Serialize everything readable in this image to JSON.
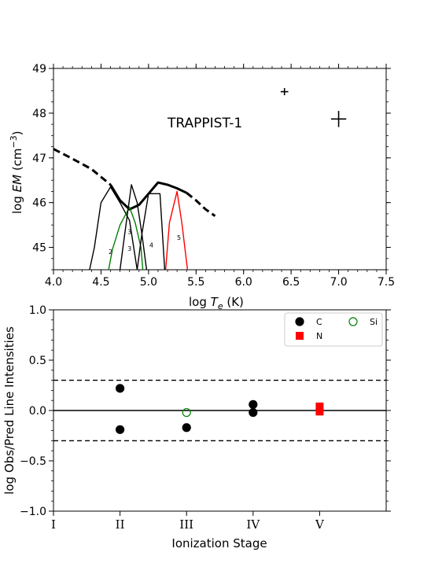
{
  "chart_data": [
    {
      "type": "line",
      "annotation": "TRAPPIST-1",
      "xlim": [
        4.0,
        7.5
      ],
      "ylim": [
        44.5,
        49.0
      ],
      "xticks": [
        "4.0",
        "4.5",
        "5.0",
        "5.5",
        "6.0",
        "6.5",
        "7.0",
        "7.5"
      ],
      "yticks": [
        "45",
        "46",
        "47",
        "48",
        "49"
      ],
      "xlabel": {
        "pre": "log ",
        "var": "T",
        "sub": "e",
        "post": " (K)"
      },
      "ylabel": {
        "pre": "log ",
        "var": "EM",
        "post": " (cm",
        "sup": "−3",
        "close": ")"
      },
      "series": [
        {
          "kind": "em-dashed",
          "color": "#000000",
          "x": [
            4.0,
            4.2,
            4.4,
            4.6
          ],
          "y": [
            47.2,
            46.98,
            46.75,
            46.4
          ]
        },
        {
          "kind": "em-solid",
          "color": "#000000",
          "x": [
            4.6,
            4.7,
            4.8,
            4.9,
            5.0,
            5.1,
            5.2,
            5.3,
            5.4
          ],
          "y": [
            46.4,
            46.05,
            45.85,
            45.95,
            46.2,
            46.45,
            46.4,
            46.32,
            46.22
          ]
        },
        {
          "kind": "em-dashed",
          "color": "#000000",
          "x": [
            5.4,
            5.5,
            5.6,
            5.7
          ],
          "y": [
            46.22,
            46.05,
            45.85,
            45.7
          ]
        },
        {
          "kind": "loci",
          "color": "#000000",
          "x": [
            4.38,
            4.43,
            4.5,
            4.6,
            4.7,
            4.8,
            4.88
          ],
          "y": [
            44.5,
            45.0,
            46.0,
            46.35,
            46.0,
            45.6,
            44.5
          ]
        },
        {
          "kind": "loci",
          "color": "#008000",
          "x": [
            4.58,
            4.62,
            4.7,
            4.8,
            4.86,
            4.92,
            4.94
          ],
          "y": [
            44.5,
            44.95,
            45.5,
            45.9,
            45.55,
            45.0,
            44.5
          ]
        },
        {
          "kind": "loci",
          "color": "#000000",
          "x": [
            4.7,
            4.75,
            4.82,
            4.88,
            4.93,
            4.98
          ],
          "y": [
            44.5,
            45.3,
            46.4,
            46.0,
            45.3,
            44.5
          ]
        },
        {
          "kind": "loci",
          "color": "#000000",
          "x": [
            4.88,
            4.93,
            5.0,
            5.12,
            5.17
          ],
          "y": [
            44.5,
            45.3,
            46.2,
            46.2,
            44.5
          ]
        },
        {
          "kind": "loci",
          "color": "#ff0000",
          "x": [
            5.18,
            5.22,
            5.3,
            5.35,
            5.41
          ],
          "y": [
            44.5,
            45.55,
            46.25,
            45.55,
            44.5
          ]
        }
      ],
      "point_labels": [
        {
          "text": "2",
          "x": 4.6,
          "y": 44.85
        },
        {
          "text": "3",
          "x": 4.8,
          "y": 45.3
        },
        {
          "text": "3",
          "x": 4.8,
          "y": 44.92
        },
        {
          "text": "4",
          "x": 5.03,
          "y": 45.0
        },
        {
          "text": "5",
          "x": 5.32,
          "y": 45.17
        }
      ],
      "points": [
        {
          "x": 6.43,
          "y": 48.48,
          "xerr": 0.04,
          "yerr": 0.08
        },
        {
          "x": 7.0,
          "y": 47.87,
          "xerr": 0.08,
          "yerr": 0.18
        }
      ]
    },
    {
      "type": "scatter",
      "xlim": [
        1,
        6
      ],
      "ylim": [
        -1.0,
        1.0
      ],
      "xticks": [
        "I",
        "II",
        "III",
        "IV",
        "V"
      ],
      "yticks": [
        "−1.0",
        "−0.5",
        "0.0",
        "0.5",
        "1.0"
      ],
      "xlabel": "Ionization Stage",
      "ylabel": "log Obs/Pred Line Intensities",
      "reference_lines": [
        {
          "y": 0.3,
          "style": "dashed"
        },
        {
          "y": 0.0,
          "style": "solid"
        },
        {
          "y": -0.3,
          "style": "dashed"
        }
      ],
      "series": [
        {
          "name": "C",
          "marker": "circle",
          "color": "#000000",
          "filled": true,
          "x": [
            2,
            2,
            3,
            4,
            4
          ],
          "y": [
            0.22,
            -0.19,
            -0.17,
            0.06,
            -0.02
          ]
        },
        {
          "name": "N",
          "marker": "square",
          "color": "#ff0000",
          "filled": true,
          "x": [
            5,
            5
          ],
          "y": [
            0.04,
            -0.01
          ]
        },
        {
          "name": "Si",
          "marker": "circle",
          "color": "#008000",
          "filled": false,
          "x": [
            3
          ],
          "y": [
            -0.02
          ]
        }
      ],
      "legend": {
        "placement": "top-right"
      }
    }
  ]
}
